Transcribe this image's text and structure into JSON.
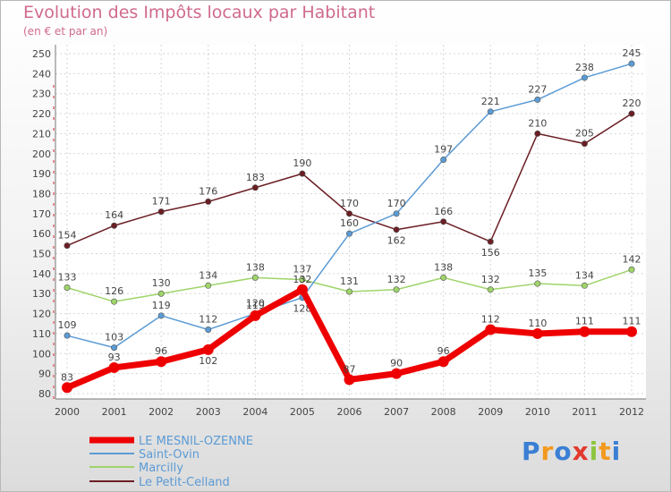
{
  "chart_data": {
    "type": "line",
    "title": "Evolution des Impôts locaux par Habitant",
    "subtitle": "(en € et par an)",
    "x": [
      "2000",
      "2001",
      "2002",
      "2003",
      "2004",
      "2005",
      "2006",
      "2007",
      "2008",
      "2009",
      "2010",
      "2011",
      "2012"
    ],
    "ylim": [
      80,
      250
    ],
    "yticks": [
      80,
      90,
      100,
      110,
      120,
      130,
      140,
      150,
      160,
      170,
      180,
      190,
      200,
      210,
      220,
      230,
      240,
      250
    ],
    "series": [
      {
        "name": "Le Petit-Celland",
        "color": "#6b1e24",
        "values": [
          154,
          164,
          171,
          176,
          183,
          190,
          170,
          162,
          166,
          156,
          210,
          205,
          220
        ]
      },
      {
        "name": "Marcilly",
        "color": "#9fd46a",
        "values": [
          133,
          126,
          130,
          134,
          138,
          137,
          131,
          132,
          138,
          132,
          135,
          134,
          142
        ]
      },
      {
        "name": "Saint-Ovin",
        "color": "#5b9bd5",
        "values": [
          109,
          103,
          119,
          112,
          120,
          128,
          160,
          170,
          197,
          221,
          227,
          238,
          245
        ]
      },
      {
        "name": "LE MESNIL-OZENNE",
        "color": "#ee0000",
        "values": [
          83,
          93,
          96,
          102,
          119,
          132,
          87,
          90,
          96,
          112,
          110,
          111,
          111
        ]
      }
    ],
    "legend": [
      "LE MESNIL-OZENNE",
      "Saint-Ovin",
      "Marcilly",
      "Le Petit-Celland"
    ]
  },
  "branding": {
    "logo": "Proxiti",
    "logo_letters": [
      "P",
      "r",
      "o",
      "x",
      "i",
      "t",
      "i"
    ]
  }
}
